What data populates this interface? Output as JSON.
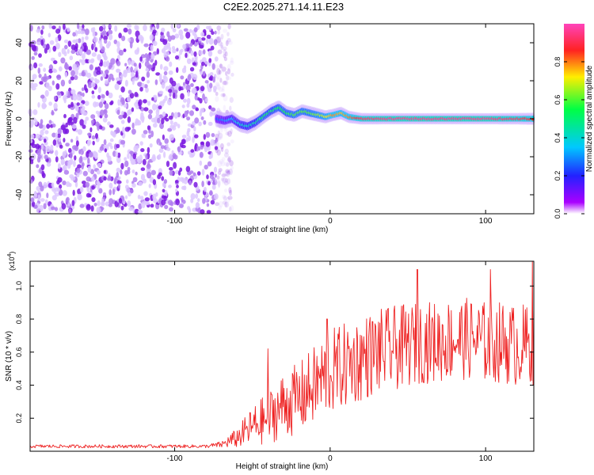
{
  "title": "C2E2.2025.271.14.11.E23",
  "chart_data": [
    {
      "type": "heatmap",
      "xlabel": "Height of straight line (km)",
      "ylabel": "Frequency (Hz)",
      "xlim": [
        -193,
        131
      ],
      "ylim": [
        -50,
        50
      ],
      "x_ticks": [
        -100,
        0,
        100
      ],
      "x_tick_labels": [
        "-100",
        "0",
        "100"
      ],
      "y_ticks": [
        -40,
        -20,
        0,
        20,
        40
      ],
      "y_tick_labels": [
        "-40",
        "-20",
        "0",
        "20",
        "40"
      ],
      "colorbar": {
        "label": "Normalized spectral amplitude",
        "range": [
          0,
          1
        ],
        "ticks": [
          0.0,
          0.2,
          0.4,
          0.6,
          0.8
        ],
        "tick_labels": [
          "0.0",
          "0.2",
          "0.4",
          "0.6",
          "0.8"
        ],
        "colormap": [
          "#ffffff",
          "#8800ff",
          "#2222ff",
          "#00c8ff",
          "#00ff66",
          "#ffee00",
          "#ff2222",
          "#ff44cc"
        ]
      },
      "noise_region_x": [
        -193,
        -73
      ],
      "ridge": {
        "x": [
          -73,
          -68,
          -63,
          -58,
          -53,
          -48,
          -43,
          -38,
          -33,
          -28,
          -23,
          -18,
          -13,
          -8,
          -3,
          2,
          7,
          12,
          20,
          40,
          60,
          80,
          100,
          120,
          131
        ],
        "frequency": [
          0,
          -1,
          0,
          -3,
          -4,
          -2,
          1,
          4,
          6,
          3,
          2,
          4,
          3,
          2,
          1,
          2,
          3,
          1,
          0,
          0,
          0,
          0,
          0,
          0,
          0
        ],
        "amplitude": [
          0.25,
          0.3,
          0.35,
          0.4,
          0.42,
          0.45,
          0.55,
          0.5,
          0.55,
          0.55,
          0.6,
          0.6,
          0.6,
          0.65,
          0.7,
          0.8,
          0.75,
          0.8,
          0.9,
          0.95,
          0.95,
          0.95,
          0.95,
          0.9,
          0.85
        ]
      }
    },
    {
      "type": "line",
      "xlabel": "Height of straight line (km)",
      "ylabel": "SNR (10 * v/v)",
      "y_scale_label": "(x10",
      "y_scale_exp": "4",
      "y_scale_close": ")",
      "xlim": [
        -193,
        131
      ],
      "ylim": [
        0,
        1.15
      ],
      "x_ticks": [
        -100,
        0,
        100
      ],
      "x_tick_labels": [
        "-100",
        "0",
        "100"
      ],
      "y_ticks": [
        0.2,
        0.4,
        0.6,
        0.8,
        1.0
      ],
      "y_tick_labels": [
        "0.2",
        "0.4",
        "0.6",
        "0.8",
        "1.0"
      ],
      "series_color": "#ee2222",
      "envelope": {
        "x": [
          -193,
          -80,
          -70,
          -60,
          -50,
          -40,
          -30,
          -20,
          -10,
          0,
          10,
          20,
          30,
          40,
          50,
          60,
          70,
          80,
          90,
          100,
          110,
          120,
          131
        ],
        "mean": [
          0.03,
          0.03,
          0.04,
          0.08,
          0.15,
          0.2,
          0.28,
          0.32,
          0.4,
          0.48,
          0.52,
          0.56,
          0.6,
          0.62,
          0.64,
          0.66,
          0.66,
          0.68,
          0.68,
          0.66,
          0.66,
          0.64,
          0.65
        ],
        "spread": [
          0.01,
          0.01,
          0.02,
          0.06,
          0.12,
          0.16,
          0.2,
          0.22,
          0.24,
          0.26,
          0.26,
          0.26,
          0.26,
          0.26,
          0.25,
          0.25,
          0.25,
          0.25,
          0.25,
          0.25,
          0.25,
          0.25,
          0.25
        ]
      },
      "peaks": [
        {
          "x": -40,
          "y": 0.62
        },
        {
          "x": -2,
          "y": 0.8
        },
        {
          "x": 56,
          "y": 1.1
        },
        {
          "x": 103,
          "y": 1.1
        },
        {
          "x": 130,
          "y": 1.15
        }
      ]
    }
  ]
}
